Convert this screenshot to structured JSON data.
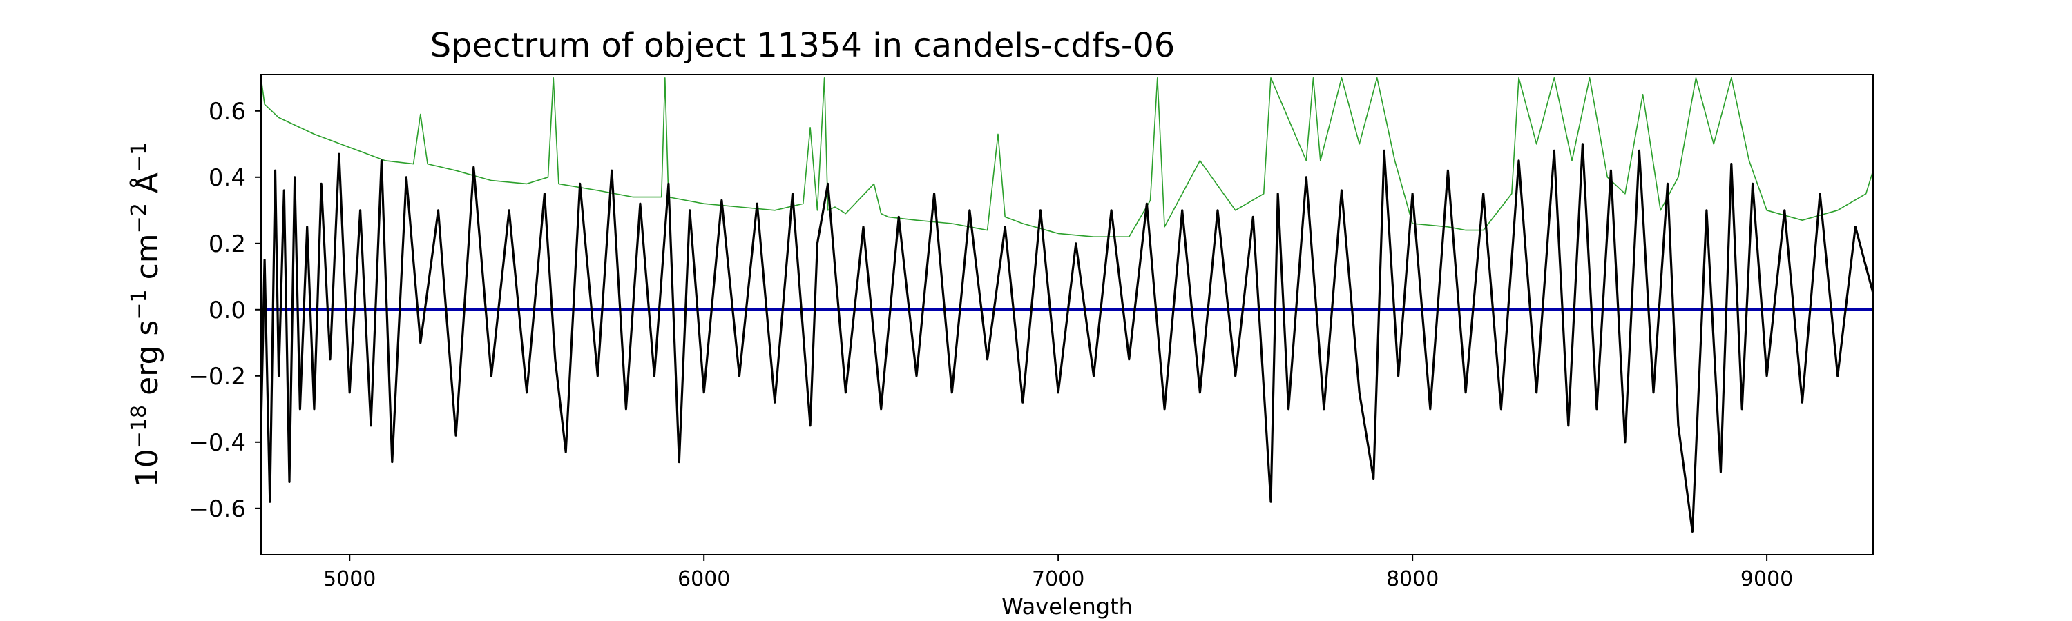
{
  "chart_data": {
    "type": "line",
    "title": "Spectrum of object 11354 in candels-cdfs-06",
    "xlabel": "Wavelength",
    "ylabel": {
      "base": "10",
      "exp1": "−18",
      "t1": " erg s",
      "exp2": "−1",
      "t2": " cm",
      "exp3": "−2",
      "t3": " Å",
      "exp4": "−1"
    },
    "xlim": [
      4750,
      9300
    ],
    "ylim": [
      -0.74,
      0.71
    ],
    "xticks": [
      5000,
      6000,
      7000,
      8000,
      9000
    ],
    "yticks": [
      -0.6,
      -0.4,
      -0.2,
      0.0,
      0.2,
      0.4,
      0.6
    ],
    "ytick_labels": [
      "−0.6",
      "−0.4",
      "−0.2",
      "0.0",
      "0.2",
      "0.4",
      "0.6"
    ],
    "grid": false,
    "legend": "none",
    "colors": {
      "flux": "#000000",
      "error": "#2ca02c",
      "model": "#0000aa",
      "axes": "#000000"
    },
    "series": [
      {
        "role": "flux",
        "x": [
          4750,
          4760,
          4775,
          4790,
          4800,
          4815,
          4830,
          4845,
          4860,
          4880,
          4900,
          4920,
          4945,
          4970,
          5000,
          5030,
          5060,
          5090,
          5120,
          5160,
          5200,
          5250,
          5300,
          5350,
          5400,
          5450,
          5500,
          5550,
          5580,
          5610,
          5650,
          5700,
          5740,
          5780,
          5820,
          5860,
          5900,
          5930,
          5960,
          6000,
          6050,
          6100,
          6150,
          6200,
          6250,
          6300,
          6320,
          6350,
          6400,
          6450,
          6500,
          6550,
          6600,
          6650,
          6700,
          6750,
          6800,
          6850,
          6900,
          6950,
          7000,
          7050,
          7100,
          7150,
          7200,
          7250,
          7300,
          7350,
          7400,
          7450,
          7500,
          7550,
          7600,
          7620,
          7650,
          7700,
          7750,
          7800,
          7850,
          7890,
          7920,
          7960,
          8000,
          8050,
          8100,
          8150,
          8200,
          8250,
          8300,
          8350,
          8400,
          8440,
          8480,
          8520,
          8560,
          8600,
          8640,
          8680,
          8720,
          8750,
          8790,
          8830,
          8870,
          8900,
          8930,
          8960,
          9000,
          9050,
          9100,
          9150,
          9200,
          9250,
          9300
        ],
        "y": [
          -0.35,
          0.15,
          -0.58,
          0.42,
          -0.2,
          0.36,
          -0.52,
          0.4,
          -0.3,
          0.25,
          -0.3,
          0.38,
          -0.15,
          0.47,
          -0.25,
          0.3,
          -0.35,
          0.45,
          -0.46,
          0.4,
          -0.1,
          0.3,
          -0.38,
          0.43,
          -0.2,
          0.3,
          -0.25,
          0.35,
          -0.15,
          -0.43,
          0.38,
          -0.2,
          0.42,
          -0.3,
          0.32,
          -0.2,
          0.38,
          -0.46,
          0.3,
          -0.25,
          0.33,
          -0.2,
          0.32,
          -0.28,
          0.35,
          -0.35,
          0.2,
          0.38,
          -0.25,
          0.25,
          -0.3,
          0.28,
          -0.2,
          0.35,
          -0.25,
          0.3,
          -0.15,
          0.25,
          -0.28,
          0.3,
          -0.25,
          0.2,
          -0.2,
          0.3,
          -0.15,
          0.32,
          -0.3,
          0.3,
          -0.25,
          0.3,
          -0.2,
          0.28,
          -0.58,
          0.35,
          -0.3,
          0.4,
          -0.3,
          0.36,
          -0.25,
          -0.51,
          0.48,
          -0.2,
          0.35,
          -0.3,
          0.42,
          -0.25,
          0.35,
          -0.3,
          0.45,
          -0.25,
          0.48,
          -0.35,
          0.5,
          -0.3,
          0.42,
          -0.4,
          0.48,
          -0.25,
          0.38,
          -0.35,
          -0.67,
          0.3,
          -0.49,
          0.44,
          -0.3,
          0.38,
          -0.2,
          0.3,
          -0.28,
          0.35,
          -0.2,
          0.25,
          0.05
        ]
      },
      {
        "role": "error",
        "x": [
          4750,
          4760,
          4800,
          4900,
          5000,
          5100,
          5180,
          5200,
          5220,
          5300,
          5400,
          5500,
          5560,
          5575,
          5590,
          5700,
          5800,
          5880,
          5890,
          5900,
          6000,
          6100,
          6200,
          6280,
          6300,
          6320,
          6340,
          6350,
          6370,
          6400,
          6480,
          6500,
          6520,
          6600,
          6700,
          6800,
          6830,
          6850,
          6900,
          7000,
          7100,
          7200,
          7260,
          7280,
          7300,
          7400,
          7500,
          7580,
          7600,
          7700,
          7720,
          7740,
          7800,
          7850,
          7900,
          7950,
          8000,
          8100,
          8150,
          8200,
          8280,
          8300,
          8350,
          8400,
          8450,
          8500,
          8550,
          8600,
          8650,
          8700,
          8750,
          8800,
          8850,
          8900,
          8950,
          9000,
          9100,
          9200,
          9280,
          9300
        ],
        "y": [
          0.7,
          0.62,
          0.58,
          0.53,
          0.49,
          0.45,
          0.44,
          0.59,
          0.44,
          0.42,
          0.39,
          0.38,
          0.4,
          0.7,
          0.38,
          0.36,
          0.34,
          0.34,
          0.7,
          0.34,
          0.32,
          0.31,
          0.3,
          0.32,
          0.55,
          0.3,
          0.7,
          0.3,
          0.31,
          0.29,
          0.38,
          0.29,
          0.28,
          0.27,
          0.26,
          0.24,
          0.53,
          0.28,
          0.26,
          0.23,
          0.22,
          0.22,
          0.33,
          0.7,
          0.25,
          0.45,
          0.3,
          0.35,
          0.7,
          0.45,
          0.7,
          0.45,
          0.7,
          0.5,
          0.7,
          0.45,
          0.26,
          0.25,
          0.24,
          0.24,
          0.35,
          0.7,
          0.5,
          0.7,
          0.45,
          0.7,
          0.4,
          0.35,
          0.65,
          0.3,
          0.4,
          0.7,
          0.5,
          0.7,
          0.45,
          0.3,
          0.27,
          0.3,
          0.35,
          0.42
        ]
      },
      {
        "role": "model",
        "x": [
          4750,
          9300
        ],
        "y": [
          0.0,
          0.0
        ]
      }
    ]
  }
}
